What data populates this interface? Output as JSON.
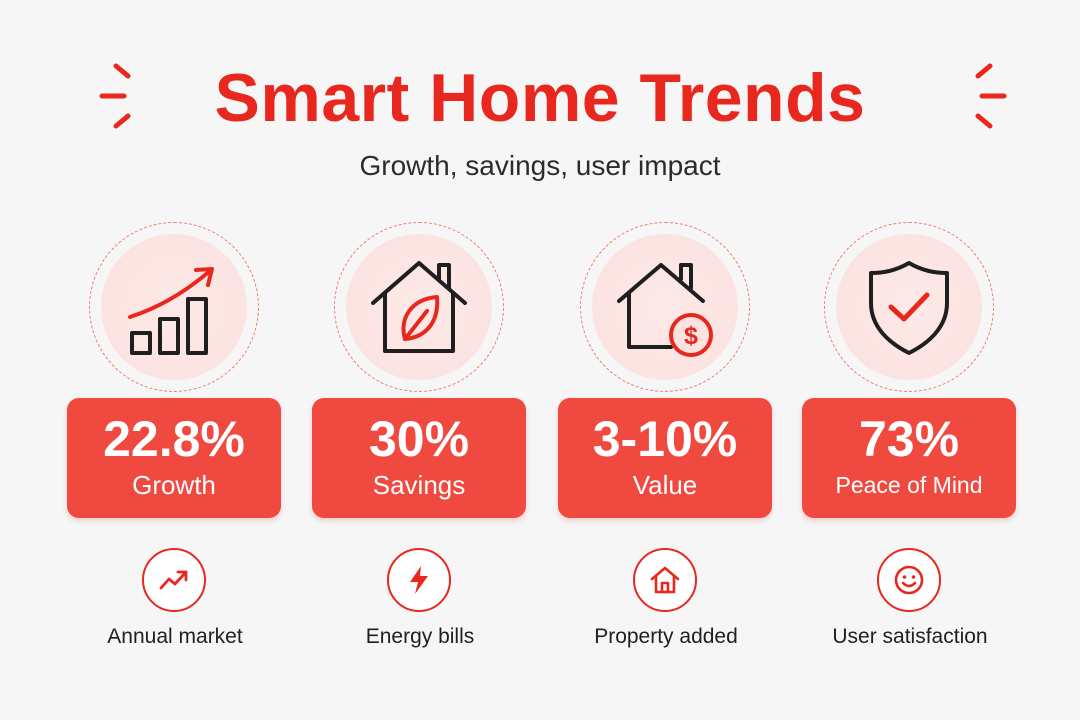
{
  "header": {
    "title": "Smart Home Trends",
    "subtitle": "Growth, savings, user impact"
  },
  "colors": {
    "accent": "#e8281f",
    "stat_box": "#f0493f",
    "icon_bg": "#fbe3e1",
    "background": "#f7f6f6",
    "text": "#1f1f1f"
  },
  "cards": [
    {
      "icon": "growth-chart-icon",
      "value": "22.8%",
      "label": "Growth",
      "small_icon": "trend-arrow-icon",
      "caption": "Annual market"
    },
    {
      "icon": "eco-house-icon",
      "value": "30%",
      "label": "Savings",
      "small_icon": "lightning-bolt-icon",
      "caption": "Energy bills"
    },
    {
      "icon": "house-dollar-icon",
      "value": "3-10%",
      "label": "Value",
      "small_icon": "house-icon",
      "caption": "Property added"
    },
    {
      "icon": "shield-check-icon",
      "value": "73%",
      "label": "Peace of Mind",
      "small_icon": "smiley-icon",
      "caption": "User satisfaction"
    }
  ]
}
